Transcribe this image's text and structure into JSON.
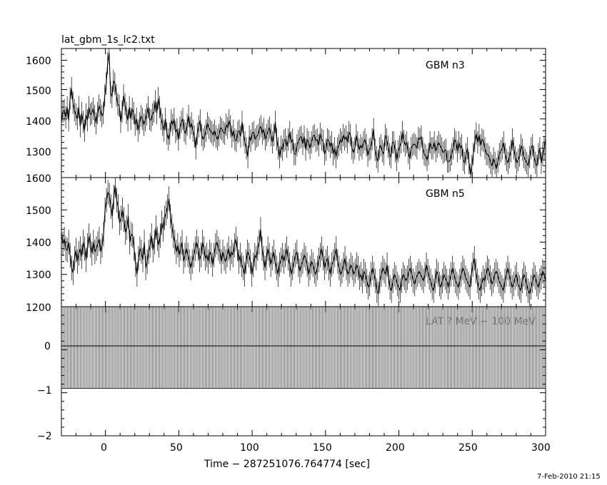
{
  "file_title": "lat_gbm_1s_lc2.txt",
  "timestamp": "7-Feb-2010 21:15",
  "chart_data": [
    {
      "type": "line",
      "title": "GBM n3",
      "ylim": [
        1200,
        1640
      ],
      "yticks": [
        "1300",
        "1400",
        "1500",
        "1600"
      ],
      "xlim": [
        -30,
        300
      ],
      "xlabel": "Time − 287251076.764774 [sec]",
      "xticks": [
        "0",
        "50",
        "100",
        "150",
        "200",
        "250",
        "300"
      ],
      "series": [
        {
          "values": [
            1390,
            1425,
            1430,
            1405,
            1440,
            1395,
            1470,
            1505,
            1455,
            1430,
            1415,
            1400,
            1440,
            1375,
            1420,
            1390,
            1360,
            1415,
            1395,
            1440,
            1415,
            1420,
            1435,
            1410,
            1385,
            1420,
            1445,
            1430,
            1410,
            1420,
            1480,
            1520,
            1590,
            1625,
            1490,
            1475,
            1530,
            1520,
            1480,
            1450,
            1445,
            1390,
            1425,
            1480,
            1450,
            1420,
            1395,
            1440,
            1400,
            1435,
            1420,
            1380,
            1400,
            1360,
            1385,
            1410,
            1400,
            1380,
            1395,
            1415,
            1440,
            1400,
            1395,
            1415,
            1425,
            1460,
            1420,
            1470,
            1440,
            1400,
            1380,
            1360,
            1400,
            1350,
            1330,
            1350,
            1395,
            1380,
            1400,
            1355,
            1365,
            1330,
            1370,
            1390,
            1400,
            1360,
            1350,
            1380,
            1410,
            1370,
            1385,
            1360,
            1340,
            1300,
            1350,
            1375,
            1395,
            1345,
            1330,
            1340,
            1360,
            1385,
            1370,
            1360,
            1355,
            1345,
            1360,
            1340,
            1330,
            1345,
            1370,
            1365,
            1355,
            1350,
            1380,
            1370,
            1395,
            1375,
            1340,
            1360,
            1330,
            1325,
            1355,
            1360,
            1340,
            1390,
            1345,
            1320,
            1300,
            1270,
            1340,
            1325,
            1350,
            1355,
            1330,
            1340,
            1345,
            1365,
            1375,
            1350,
            1365,
            1330,
            1345,
            1360,
            1370,
            1345,
            1320,
            1345,
            1390,
            1330,
            1300,
            1270,
            1305,
            1295,
            1325,
            1330,
            1305,
            1330,
            1355,
            1320,
            1330,
            1280,
            1280,
            1310,
            1325,
            1335,
            1340,
            1315,
            1340,
            1295,
            1330,
            1320,
            1300,
            1320,
            1340,
            1345,
            1325,
            1330,
            1310,
            1350,
            1330,
            1325,
            1280,
            1295,
            1330,
            1325,
            1305,
            1320,
            1280,
            1300,
            1270,
            1300,
            1310,
            1330,
            1320,
            1345,
            1330,
            1340,
            1320,
            1355,
            1345,
            1300,
            1285,
            1300,
            1345,
            1320,
            1295,
            1310,
            1300,
            1320,
            1330,
            1310,
            1275,
            1295,
            1300,
            1330,
            1365,
            1295,
            1270,
            1255,
            1300,
            1310,
            1290,
            1280,
            1345,
            1330,
            1305,
            1280,
            1270,
            1320,
            1320,
            1290,
            1260,
            1290,
            1305,
            1320,
            1355,
            1325,
            1310,
            1320,
            1285,
            1265,
            1300,
            1310,
            1315,
            1310,
            1300,
            1335,
            1330,
            1340,
            1300,
            1280,
            1275,
            1260,
            1280,
            1320,
            1300,
            1300,
            1320,
            1290,
            1305,
            1320,
            1310,
            1300,
            1285,
            1290,
            1295,
            1255,
            1255,
            1260,
            1280,
            1300,
            1330,
            1320,
            1290,
            1320,
            1300,
            1310,
            1260,
            1250,
            1280,
            1300,
            1250,
            1210,
            1240,
            1280,
            1325,
            1350,
            1320,
            1345,
            1310,
            1330,
            1325,
            1300,
            1280,
            1280,
            1270,
            1250,
            1240,
            1265,
            1250,
            1230,
            1255,
            1280,
            1290,
            1300,
            1320,
            1280,
            1260,
            1250,
            1270,
            1290,
            1330,
            1300,
            1270,
            1250,
            1260,
            1275,
            1310,
            1295,
            1270,
            1260,
            1250,
            1240,
            1270,
            1300,
            1310,
            1270,
            1250,
            1240,
            1280,
            1300,
            1250,
            1280,
            1300,
            1330
          ]
        }
      ]
    },
    {
      "type": "line",
      "title": "GBM n5",
      "ylim": [
        1200,
        1600
      ],
      "yticks": [
        "1200",
        "1300",
        "1400",
        "1500",
        "1600"
      ],
      "xlim": [
        -30,
        300
      ],
      "series": [
        {
          "values": [
            1430,
            1395,
            1410,
            1380,
            1375,
            1400,
            1360,
            1320,
            1305,
            1350,
            1375,
            1340,
            1365,
            1380,
            1355,
            1400,
            1380,
            1345,
            1390,
            1420,
            1390,
            1365,
            1400,
            1370,
            1380,
            1395,
            1410,
            1370,
            1390,
            1425,
            1500,
            1530,
            1555,
            1545,
            1510,
            1480,
            1540,
            1575,
            1530,
            1510,
            1460,
            1475,
            1500,
            1470,
            1430,
            1445,
            1480,
            1400,
            1425,
            1420,
            1380,
            1330,
            1300,
            1350,
            1380,
            1370,
            1345,
            1400,
            1320,
            1340,
            1370,
            1390,
            1420,
            1375,
            1400,
            1445,
            1410,
            1390,
            1420,
            1460,
            1440,
            1475,
            1490,
            1510,
            1535,
            1480,
            1450,
            1420,
            1400,
            1370,
            1390,
            1360,
            1380,
            1400,
            1340,
            1360,
            1380,
            1360,
            1340,
            1320,
            1340,
            1360,
            1380,
            1400,
            1380,
            1345,
            1360,
            1400,
            1380,
            1350,
            1360,
            1340,
            1370,
            1360,
            1330,
            1360,
            1390,
            1400,
            1380,
            1370,
            1340,
            1370,
            1350,
            1340,
            1360,
            1380,
            1350,
            1370,
            1360,
            1390,
            1410,
            1380,
            1340,
            1360,
            1330,
            1320,
            1300,
            1340,
            1370,
            1360,
            1340,
            1300,
            1330,
            1360,
            1350,
            1380,
            1400,
            1440,
            1380,
            1350,
            1320,
            1350,
            1380,
            1360,
            1330,
            1350,
            1370,
            1340,
            1320,
            1300,
            1330,
            1345,
            1360,
            1340,
            1360,
            1380,
            1350,
            1330,
            1300,
            1320,
            1340,
            1360,
            1370,
            1330,
            1310,
            1330,
            1340,
            1360,
            1350,
            1330,
            1300,
            1320,
            1340,
            1330,
            1310,
            1300,
            1320,
            1345,
            1360,
            1380,
            1350,
            1320,
            1340,
            1350,
            1320,
            1300,
            1330,
            1340,
            1360,
            1380,
            1340,
            1320,
            1300,
            1310,
            1330,
            1350,
            1320,
            1300,
            1310,
            1330,
            1320,
            1300,
            1310,
            1330,
            1320,
            1290,
            1300,
            1280,
            1310,
            1300,
            1280,
            1260,
            1270,
            1300,
            1320,
            1300,
            1280,
            1250,
            1240,
            1280,
            1300,
            1320,
            1310,
            1300,
            1330,
            1290,
            1260,
            1250,
            1280,
            1300,
            1290,
            1270,
            1260,
            1250,
            1280,
            1300,
            1290,
            1280,
            1290,
            1310,
            1320,
            1300,
            1280,
            1270,
            1290,
            1300,
            1310,
            1300,
            1290,
            1280,
            1300,
            1330,
            1310,
            1290,
            1280,
            1260,
            1250,
            1280,
            1310,
            1300,
            1270,
            1260,
            1280,
            1300,
            1290,
            1280,
            1260,
            1280,
            1300,
            1320,
            1300,
            1280,
            1270,
            1260,
            1280,
            1300,
            1320,
            1310,
            1290,
            1280,
            1270,
            1260,
            1300,
            1330,
            1350,
            1310,
            1280,
            1260,
            1250,
            1270,
            1290,
            1280,
            1300,
            1320,
            1310,
            1290,
            1270,
            1280,
            1300,
            1310,
            1300,
            1280,
            1270,
            1260,
            1250,
            1280,
            1300,
            1320,
            1300,
            1280,
            1260,
            1270,
            1290,
            1300,
            1270,
            1260,
            1250,
            1280,
            1300,
            1290,
            1270,
            1250,
            1240,
            1260,
            1280,
            1300,
            1290,
            1270,
            1260,
            1280,
            1290,
            1310,
            1300,
            1280
          ]
        }
      ]
    },
    {
      "type": "line",
      "title": "LAT ? MeV − 100 MeV",
      "ylim": [
        -2,
        1
      ],
      "yticks": [
        "−2",
        "−1",
        "0"
      ],
      "xlim": [
        -30,
        300
      ],
      "series": [
        {
          "values": [
            0,
            1,
            -0.9
          ]
        }
      ]
    }
  ]
}
